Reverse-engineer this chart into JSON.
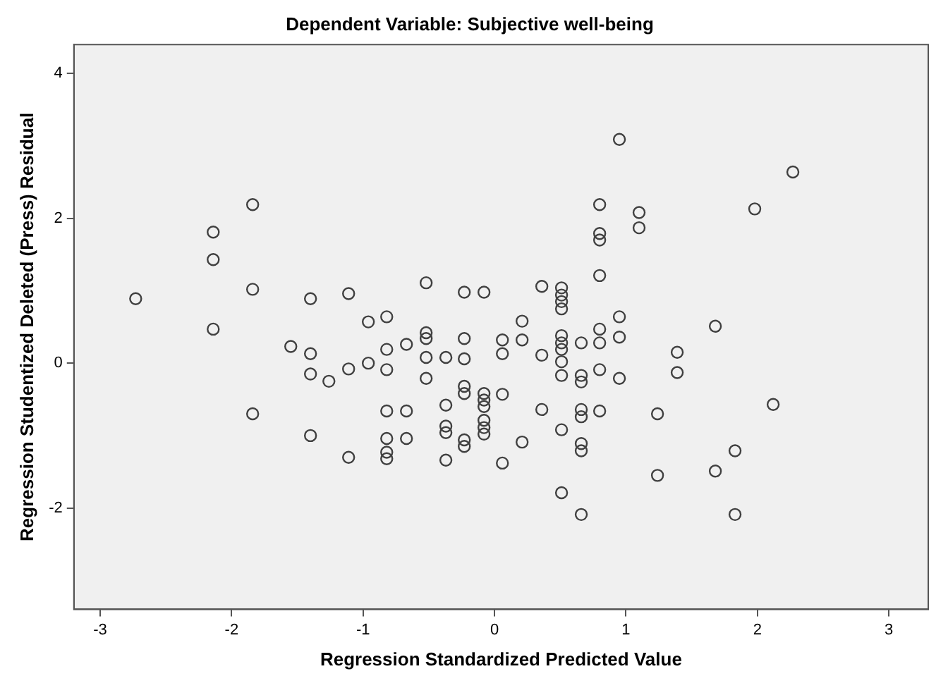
{
  "chart_data": {
    "type": "scatter",
    "title": "Dependent Variable: Subjective well-being",
    "xlabel": "Regression Standardized Predicted Value",
    "ylabel": "Regression Studentized Deleted (Press) Residual",
    "x": [
      -2.73,
      -2.14,
      -2.14,
      -2.14,
      -1.84,
      -1.84,
      -1.84,
      -1.55,
      -1.4,
      -1.4,
      -1.4,
      -1.4,
      -1.26,
      -1.11,
      -1.11,
      -1.11,
      -0.96,
      -0.96,
      -0.82,
      -0.82,
      -0.82,
      -0.82,
      -0.82,
      -0.82,
      -0.82,
      -0.67,
      -0.67,
      -0.67,
      -0.52,
      -0.52,
      -0.52,
      -0.52,
      -0.52,
      -0.37,
      -0.37,
      -0.37,
      -0.37,
      -0.37,
      -0.23,
      -0.23,
      -0.23,
      -0.23,
      -0.23,
      -0.23,
      -0.23,
      -0.08,
      -0.08,
      -0.08,
      -0.08,
      -0.08,
      -0.08,
      -0.08,
      0.06,
      0.06,
      0.06,
      0.06,
      0.21,
      0.21,
      0.21,
      0.36,
      0.36,
      0.36,
      0.51,
      0.51,
      0.51,
      0.51,
      0.51,
      0.51,
      0.51,
      0.51,
      0.51,
      0.51,
      0.51,
      0.66,
      0.66,
      0.66,
      0.66,
      0.66,
      0.66,
      0.66,
      0.66,
      0.8,
      0.8,
      0.8,
      0.8,
      0.8,
      0.8,
      0.8,
      0.8,
      0.95,
      0.95,
      0.95,
      0.95,
      1.1,
      1.1,
      1.24,
      1.24,
      1.39,
      1.39,
      1.68,
      1.68,
      1.83,
      1.83,
      1.98,
      2.12,
      2.27
    ],
    "values": [
      0.89,
      1.81,
      1.43,
      0.47,
      2.19,
      1.02,
      -0.7,
      0.23,
      0.89,
      0.13,
      -0.15,
      -1.0,
      -0.25,
      0.96,
      -0.08,
      -1.3,
      0.57,
      0.0,
      0.64,
      0.19,
      -0.09,
      -0.66,
      -1.04,
      -1.23,
      -1.32,
      0.26,
      -0.66,
      -1.04,
      1.11,
      0.42,
      0.34,
      0.08,
      -0.21,
      0.08,
      -0.58,
      -0.87,
      -0.96,
      -1.34,
      0.98,
      0.34,
      0.06,
      -0.32,
      -0.42,
      -1.06,
      -1.15,
      0.98,
      -0.42,
      -0.51,
      -0.6,
      -0.79,
      -0.89,
      -0.98,
      0.32,
      0.13,
      -0.43,
      -1.38,
      0.58,
      0.32,
      -1.09,
      1.06,
      0.11,
      -0.64,
      1.04,
      0.94,
      0.85,
      0.75,
      0.38,
      0.28,
      0.19,
      0.02,
      -0.17,
      -0.92,
      -1.79,
      0.28,
      -0.17,
      -0.26,
      -0.64,
      -0.74,
      -1.11,
      -1.21,
      -2.09,
      2.19,
      1.79,
      1.7,
      1.21,
      0.47,
      0.28,
      -0.09,
      -0.66,
      3.09,
      0.64,
      0.36,
      -0.21,
      2.08,
      1.87,
      -0.7,
      -1.55,
      0.15,
      -0.13,
      0.51,
      -1.49,
      -1.21,
      -2.09,
      2.13,
      -0.57,
      2.64
    ],
    "color": "#404040",
    "marker": "circle",
    "xlim": [
      -3.2,
      3.3
    ],
    "xticks": [
      -3,
      -2,
      -1,
      0,
      1,
      2,
      3
    ],
    "ylim": [
      -3.4,
      4.4
    ],
    "yticks": [
      -2,
      0,
      2,
      4
    ],
    "grid": false,
    "legend": false
  }
}
